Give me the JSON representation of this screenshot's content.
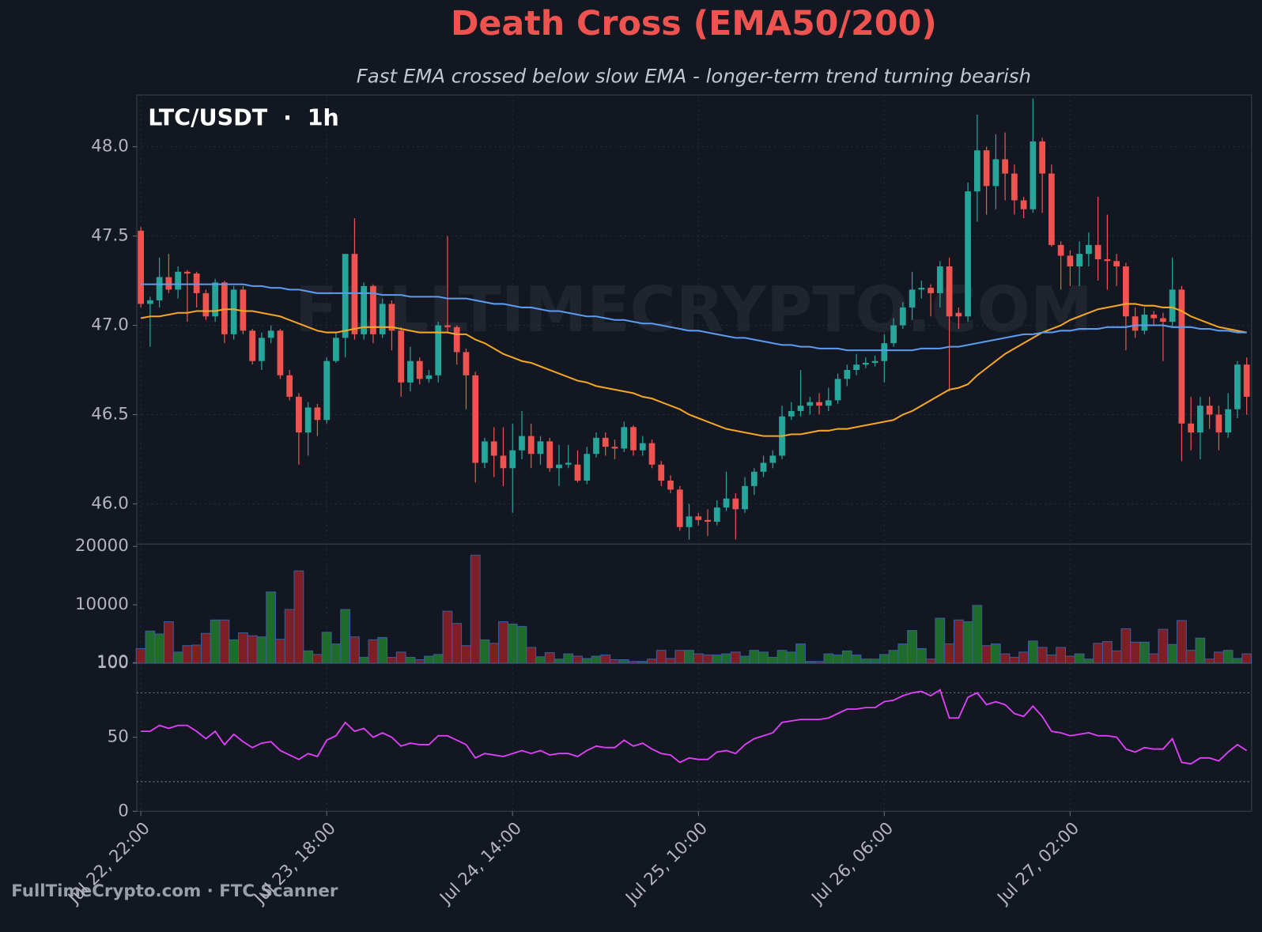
{
  "chart_data": [
    {
      "type": "candlestick",
      "title": "Death Cross (EMA50/200)",
      "subtitle": "Fast EMA crossed below slow EMA - longer-term trend turning bearish",
      "label": "LTC/USDT  ·  1h",
      "watermark": "FULLTIMECRYPTO.COM",
      "up_color": "#26a69a",
      "down_color": "#ef5350",
      "categories": [
        "Jul 22, 22:00",
        null,
        null,
        null,
        null,
        null,
        null,
        null,
        null,
        null,
        null,
        null,
        null,
        null,
        null,
        null,
        null,
        null,
        null,
        null,
        "Jul 23, 18:00",
        null,
        null,
        null,
        null,
        null,
        null,
        null,
        null,
        null,
        null,
        null,
        null,
        null,
        null,
        null,
        null,
        null,
        null,
        null,
        "Jul 24, 14:00",
        null,
        null,
        null,
        null,
        null,
        null,
        null,
        null,
        null,
        null,
        null,
        null,
        null,
        null,
        null,
        null,
        null,
        null,
        null,
        "Jul 25, 10:00",
        null,
        null,
        null,
        null,
        null,
        null,
        null,
        null,
        null,
        null,
        null,
        null,
        null,
        null,
        null,
        null,
        null,
        null,
        null,
        "Jul 26, 06:00",
        null,
        null,
        null,
        null,
        null,
        null,
        null,
        null,
        null,
        null,
        null,
        null,
        null,
        null,
        null,
        null,
        null,
        null,
        null,
        "Jul 27, 02:00",
        null,
        null,
        null,
        null,
        null,
        null,
        null,
        null,
        null,
        null,
        null,
        null,
        null,
        null,
        null,
        null,
        null,
        null,
        null
      ],
      "open": [
        47.53,
        47.12,
        47.14,
        47.27,
        47.2,
        47.3,
        47.29,
        47.18,
        47.05,
        47.24,
        46.95,
        47.2,
        46.97,
        46.8,
        46.93,
        46.97,
        46.72,
        46.6,
        46.4,
        46.54,
        46.47,
        46.8,
        46.93,
        47.4,
        46.95,
        47.22,
        46.95,
        47.12,
        46.97,
        46.68,
        46.8,
        46.7,
        46.72,
        47.0,
        46.99,
        46.85,
        46.72,
        46.23,
        46.35,
        46.27,
        46.2,
        46.3,
        46.38,
        46.28,
        46.35,
        46.2,
        46.22,
        46.22,
        46.13,
        46.28,
        46.37,
        46.32,
        46.31,
        46.43,
        46.3,
        46.34,
        46.22,
        46.13,
        46.08,
        45.87,
        45.93,
        45.91,
        45.9,
        45.98,
        46.03,
        45.97,
        46.1,
        46.18,
        46.23,
        46.27,
        46.49,
        46.52,
        46.55,
        46.57,
        46.55,
        46.58,
        46.7,
        46.75,
        46.78,
        46.79,
        46.8,
        46.9,
        47.0,
        47.1,
        47.2,
        47.21,
        47.18,
        47.33,
        47.07,
        47.05,
        47.75,
        47.98,
        47.78,
        47.93,
        47.85,
        47.7,
        47.65,
        48.03,
        47.85,
        47.45,
        47.39,
        47.33,
        47.4,
        47.45,
        47.37,
        47.36,
        47.33,
        47.05,
        46.97,
        47.06,
        47.04,
        47.02,
        47.2,
        46.45,
        46.4,
        46.55,
        46.5,
        46.4,
        46.53,
        46.78
      ],
      "high": [
        47.55,
        47.16,
        47.38,
        47.4,
        47.33,
        47.31,
        47.3,
        47.2,
        47.26,
        47.25,
        47.22,
        47.22,
        46.98,
        46.96,
        47.0,
        46.98,
        46.75,
        46.62,
        46.57,
        46.56,
        46.82,
        46.96,
        47.4,
        47.6,
        47.24,
        47.23,
        47.15,
        47.14,
        46.99,
        46.88,
        46.82,
        46.75,
        47.02,
        47.5,
        47.0,
        46.87,
        46.74,
        46.37,
        46.43,
        46.43,
        46.45,
        46.52,
        46.45,
        46.38,
        46.37,
        46.33,
        46.33,
        46.3,
        46.32,
        46.4,
        46.4,
        46.36,
        46.46,
        46.44,
        46.38,
        46.36,
        46.24,
        46.16,
        46.1,
        46.0,
        45.95,
        45.97,
        46.02,
        46.18,
        46.06,
        46.15,
        46.2,
        46.27,
        46.3,
        46.55,
        46.57,
        46.75,
        46.6,
        46.62,
        46.65,
        46.73,
        46.78,
        46.84,
        46.82,
        46.83,
        46.95,
        47.04,
        47.13,
        47.3,
        47.25,
        47.23,
        47.36,
        47.38,
        47.1,
        47.8,
        48.18,
        48.0,
        48.07,
        48.08,
        47.9,
        47.72,
        48.27,
        48.05,
        47.9,
        47.47,
        47.42,
        47.47,
        47.52,
        47.72,
        47.62,
        47.4,
        47.35,
        47.1,
        47.1,
        47.08,
        47.07,
        47.38,
        47.22,
        46.6,
        46.6,
        46.6,
        46.55,
        46.62,
        46.8,
        46.82
      ],
      "low": [
        47.1,
        46.88,
        47.1,
        47.18,
        47.15,
        47.02,
        47.1,
        47.03,
        47.02,
        46.9,
        46.92,
        46.95,
        46.78,
        46.75,
        46.9,
        46.7,
        46.58,
        46.22,
        46.27,
        46.38,
        46.45,
        46.79,
        46.82,
        46.92,
        46.92,
        46.9,
        46.93,
        46.86,
        46.6,
        46.63,
        46.67,
        46.68,
        46.68,
        46.96,
        46.78,
        46.53,
        46.12,
        46.2,
        46.15,
        46.1,
        45.95,
        46.25,
        46.2,
        46.22,
        46.18,
        46.1,
        46.2,
        46.12,
        46.11,
        46.26,
        46.27,
        46.25,
        46.29,
        46.27,
        46.27,
        46.2,
        46.1,
        46.06,
        45.85,
        45.8,
        45.88,
        45.82,
        45.88,
        45.96,
        45.8,
        45.95,
        46.05,
        46.15,
        46.2,
        46.25,
        46.47,
        46.49,
        46.5,
        46.5,
        46.52,
        46.56,
        46.66,
        46.72,
        46.76,
        46.77,
        46.68,
        46.88,
        46.98,
        47.03,
        47.15,
        47.05,
        47.1,
        46.63,
        46.98,
        47.02,
        47.58,
        47.62,
        47.65,
        47.7,
        47.62,
        47.6,
        47.63,
        47.63,
        47.44,
        47.2,
        47.22,
        47.22,
        47.33,
        47.25,
        47.2,
        47.22,
        46.86,
        46.93,
        46.95,
        47.0,
        46.8,
        46.99,
        46.24,
        46.3,
        46.25,
        46.42,
        46.3,
        46.37,
        46.48,
        46.5
      ],
      "close": [
        47.12,
        47.14,
        47.27,
        47.2,
        47.3,
        47.29,
        47.18,
        47.05,
        47.24,
        46.95,
        47.2,
        46.97,
        46.8,
        46.93,
        46.97,
        46.72,
        46.6,
        46.4,
        46.54,
        46.47,
        46.8,
        46.93,
        47.4,
        46.95,
        47.22,
        46.95,
        47.12,
        46.97,
        46.68,
        46.8,
        46.7,
        46.72,
        47.0,
        46.99,
        46.85,
        46.72,
        46.23,
        46.35,
        46.27,
        46.2,
        46.3,
        46.38,
        46.28,
        46.35,
        46.2,
        46.22,
        46.23,
        46.13,
        46.28,
        46.37,
        46.32,
        46.31,
        46.43,
        46.3,
        46.34,
        46.22,
        46.13,
        46.08,
        45.87,
        45.93,
        45.91,
        45.9,
        45.98,
        46.03,
        45.97,
        46.1,
        46.18,
        46.23,
        46.27,
        46.49,
        46.52,
        46.55,
        46.57,
        46.55,
        46.58,
        46.7,
        46.75,
        46.78,
        46.79,
        46.8,
        46.9,
        47.0,
        47.1,
        47.2,
        47.21,
        47.18,
        47.33,
        47.05,
        47.05,
        47.75,
        47.98,
        47.78,
        47.93,
        47.85,
        47.7,
        47.65,
        48.03,
        47.85,
        47.45,
        47.39,
        47.33,
        47.4,
        47.45,
        47.37,
        47.36,
        47.33,
        47.05,
        46.97,
        47.06,
        47.04,
        47.02,
        47.2,
        46.45,
        46.4,
        46.55,
        46.5,
        46.4,
        46.53,
        46.78,
        46.6
      ],
      "series": [
        {
          "color": "#f5a623",
          "values": [
            47.04,
            47.05,
            47.05,
            47.06,
            47.07,
            47.07,
            47.08,
            47.08,
            47.08,
            47.09,
            47.09,
            47.08,
            47.08,
            47.07,
            47.06,
            47.05,
            47.03,
            47.01,
            46.99,
            46.97,
            46.96,
            46.96,
            46.97,
            46.98,
            46.99,
            46.99,
            46.99,
            46.99,
            46.98,
            46.97,
            46.96,
            46.96,
            46.96,
            46.96,
            46.95,
            46.95,
            46.92,
            46.9,
            46.87,
            46.84,
            46.82,
            46.8,
            46.79,
            46.77,
            46.75,
            46.73,
            46.71,
            46.69,
            46.68,
            46.66,
            46.65,
            46.64,
            46.63,
            46.62,
            46.6,
            46.59,
            46.57,
            46.55,
            46.53,
            46.5,
            46.48,
            46.46,
            46.44,
            46.42,
            46.41,
            46.4,
            46.39,
            46.38,
            46.38,
            46.38,
            46.39,
            46.39,
            46.4,
            46.41,
            46.41,
            46.42,
            46.42,
            46.43,
            46.44,
            46.45,
            46.46,
            46.47,
            46.5,
            46.52,
            46.55,
            46.58,
            46.61,
            46.64,
            46.65,
            46.67,
            46.72,
            46.76,
            46.8,
            46.84,
            46.87,
            46.9,
            46.93,
            46.96,
            46.98,
            47.0,
            47.03,
            47.05,
            47.07,
            47.09,
            47.1,
            47.11,
            47.12,
            47.12,
            47.11,
            47.11,
            47.1,
            47.1,
            47.08,
            47.05,
            47.03,
            47.01,
            46.99,
            46.98,
            46.97,
            46.96
          ]
        },
        {
          "color": "#5b9cf0",
          "values": [
            47.23,
            47.23,
            47.23,
            47.23,
            47.23,
            47.23,
            47.23,
            47.23,
            47.23,
            47.23,
            47.23,
            47.23,
            47.22,
            47.22,
            47.21,
            47.21,
            47.2,
            47.2,
            47.19,
            47.18,
            47.18,
            47.18,
            47.18,
            47.18,
            47.18,
            47.18,
            47.17,
            47.17,
            47.17,
            47.16,
            47.16,
            47.16,
            47.16,
            47.15,
            47.15,
            47.15,
            47.14,
            47.13,
            47.12,
            47.12,
            47.11,
            47.1,
            47.1,
            47.09,
            47.08,
            47.08,
            47.07,
            47.06,
            47.05,
            47.05,
            47.04,
            47.03,
            47.03,
            47.02,
            47.01,
            47.01,
            47.0,
            46.99,
            46.98,
            46.97,
            46.97,
            46.96,
            46.95,
            46.94,
            46.93,
            46.93,
            46.92,
            46.91,
            46.9,
            46.89,
            46.89,
            46.88,
            46.88,
            46.87,
            46.87,
            46.87,
            46.86,
            46.86,
            46.86,
            46.86,
            46.86,
            46.86,
            46.86,
            46.86,
            46.87,
            46.87,
            46.87,
            46.88,
            46.88,
            46.89,
            46.9,
            46.91,
            46.92,
            46.93,
            46.94,
            46.95,
            46.95,
            46.96,
            46.96,
            46.97,
            46.97,
            46.98,
            46.98,
            46.98,
            46.99,
            46.99,
            46.99,
            47.0,
            47.0,
            47.0,
            47.0,
            46.99,
            46.99,
            46.99,
            46.98,
            46.98,
            46.97,
            46.97,
            46.96,
            46.96
          ]
        }
      ],
      "ylim": [
        45.775,
        48.29
      ],
      "yticks": [
        {
          "value": 46,
          "label": "46.0"
        },
        {
          "value": 46.5,
          "label": "46.5"
        },
        {
          "value": 47,
          "label": "47.0"
        },
        {
          "value": 47.5,
          "label": "47.5"
        },
        {
          "value": 48,
          "label": "48.0"
        }
      ],
      "grid": true
    },
    {
      "type": "bar",
      "up_color": "#1f6b2c",
      "down_color": "#7d1f24",
      "edge_color": "#3c5e9e",
      "values": [
        2500,
        5500,
        5000,
        7100,
        1900,
        3000,
        3100,
        5100,
        7400,
        7400,
        4000,
        5200,
        4700,
        4500,
        12200,
        4100,
        9200,
        15800,
        2100,
        1500,
        5300,
        3300,
        9200,
        4500,
        1000,
        4000,
        4400,
        1000,
        1900,
        1000,
        600,
        1200,
        1500,
        8900,
        6800,
        3000,
        18500,
        4000,
        3400,
        7100,
        6700,
        6300,
        2700,
        1100,
        1800,
        700,
        1600,
        1200,
        800,
        1200,
        1400,
        600,
        600,
        300,
        300,
        700,
        2200,
        800,
        2200,
        2200,
        1600,
        1400,
        1400,
        1600,
        1900,
        1200,
        2200,
        1900,
        1000,
        2200,
        1900,
        3300,
        300,
        300,
        1600,
        1400,
        2100,
        1400,
        700,
        700,
        1500,
        2200,
        3300,
        5600,
        2500,
        700,
        7700,
        3300,
        7400,
        7100,
        9900,
        3000,
        3300,
        1600,
        1000,
        1900,
        3800,
        2700,
        1400,
        2700,
        1200,
        1600,
        700,
        3400,
        3700,
        2100,
        5900,
        3600,
        3600,
        1600,
        5800,
        3200,
        7300,
        2200,
        4300,
        700,
        1900,
        2200,
        800,
        1600
      ],
      "ylim": [
        0,
        20400
      ],
      "yticks": [
        100,
        10000,
        20000
      ]
    },
    {
      "type": "line",
      "color": "#e040fb",
      "values": [
        54,
        54,
        58,
        56,
        58,
        58,
        54,
        49,
        54,
        45,
        52,
        47,
        43,
        46,
        47,
        41,
        38,
        35,
        39,
        37,
        48,
        51,
        60,
        54,
        56,
        50,
        53,
        50,
        44,
        46,
        45,
        45,
        51,
        51,
        48,
        45,
        36,
        39,
        38,
        37,
        39,
        41,
        39,
        41,
        38,
        39,
        39,
        37,
        41,
        44,
        43,
        43,
        48,
        44,
        46,
        42,
        39,
        38,
        33,
        36,
        35,
        35,
        40,
        41,
        39,
        45,
        49,
        51,
        53,
        60,
        61,
        62,
        62,
        62,
        63,
        66,
        69,
        69,
        70,
        70,
        74,
        75,
        78,
        80,
        81,
        78,
        82,
        63,
        63,
        77,
        80,
        72,
        74,
        72,
        66,
        64,
        71,
        64,
        54,
        53,
        51,
        52,
        53,
        51,
        51,
        50,
        42,
        40,
        43,
        42,
        42,
        49,
        33,
        32,
        36,
        36,
        34,
        40,
        45,
        41
      ],
      "ylim": [
        0,
        100
      ],
      "yticks": [
        0,
        50,
        100
      ],
      "hlines": [
        80,
        20
      ]
    }
  ],
  "footer": "FullTimeCrypto.com · FTC Scanner"
}
